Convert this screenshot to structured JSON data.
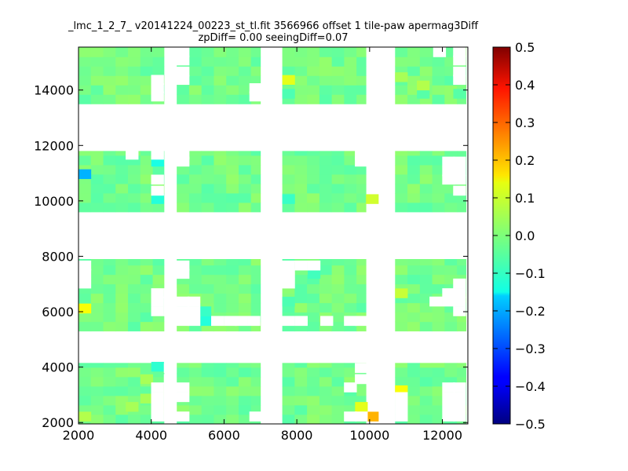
{
  "chart_data": {
    "type": "heatmap",
    "title": "_lmc_1_2_7_ v20141224_00223_st_tl.fit 3566966 offset 1 tile-paw apermag3Diff",
    "subtitle": "zpDiff= 0.00 seeingDiff=0.07",
    "xlabel": "",
    "ylabel": "",
    "xlim": [
      2000,
      12700
    ],
    "ylim": [
      1950,
      15550
    ],
    "xticks": [
      2000,
      4000,
      6000,
      8000,
      10000,
      12000
    ],
    "yticks": [
      2000,
      4000,
      6000,
      8000,
      10000,
      12000,
      14000
    ],
    "xtick_labels": [
      "2000",
      "4000",
      "6000",
      "8000",
      "10000",
      "12000"
    ],
    "ytick_labels": [
      "2000",
      "4000",
      "6000",
      "8000",
      "10000",
      "12000",
      "14000"
    ],
    "grid": false,
    "cell_size": 340,
    "colorbar": {
      "colormap": "jet",
      "vmin": -0.5,
      "vmax": 0.5,
      "ticks": [
        0.5,
        0.4,
        0.3,
        0.2,
        0.1,
        0.0,
        -0.1,
        -0.2,
        -0.3,
        -0.4,
        -0.5
      ],
      "tick_labels": [
        "0.5",
        "0.4",
        "0.3",
        "0.2",
        "0.1",
        "0.0",
        "−0.1",
        "−0.2",
        "−0.3",
        "−0.4",
        "−0.5"
      ]
    },
    "tile_blocks": {
      "x_ranges": [
        [
          2000,
          4350
        ],
        [
          4700,
          7000
        ],
        [
          7600,
          9900
        ],
        [
          10700,
          12650
        ]
      ],
      "y_ranges": [
        [
          1950,
          4150
        ],
        [
          5300,
          7900
        ],
        [
          9600,
          11800
        ],
        [
          13500,
          15550
        ]
      ],
      "base_value": -0.01
    },
    "cells": [
      {
        "x": 2000,
        "y": 10800,
        "v": -0.2
      },
      {
        "x": 4000,
        "y": 11250,
        "v": -0.1
      },
      {
        "x": 4000,
        "y": 9900,
        "v": -0.09
      },
      {
        "x": 2000,
        "y": 5950,
        "v": 0.12
      },
      {
        "x": 5300,
        "y": 5850,
        "v": -0.07
      },
      {
        "x": 5350,
        "y": 5500,
        "v": -0.09
      },
      {
        "x": 4000,
        "y": 3850,
        "v": -0.08
      },
      {
        "x": 9900,
        "y": 2050,
        "v": 0.2
      },
      {
        "x": 9600,
        "y": 2400,
        "v": 0.1
      },
      {
        "x": 10700,
        "y": 3000,
        "v": 0.12
      },
      {
        "x": 7600,
        "y": 14200,
        "v": 0.1
      },
      {
        "x": 7600,
        "y": 13700,
        "v": -0.05
      },
      {
        "x": 7600,
        "y": 9900,
        "v": -0.07
      },
      {
        "x": 9900,
        "y": 9900,
        "v": 0.08
      },
      {
        "x": 8300,
        "y": 7200,
        "v": -0.06
      },
      {
        "x": 7600,
        "y": 6200,
        "v": -0.05
      },
      {
        "x": 10700,
        "y": 6500,
        "v": 0.07
      },
      {
        "x": 12300,
        "y": 13700,
        "v": -0.04
      },
      {
        "x": 11300,
        "y": 13700,
        "v": -0.04
      },
      {
        "x": 10700,
        "y": 14300,
        "v": 0.04
      },
      {
        "x": 11300,
        "y": 14000,
        "v": 0.05
      },
      {
        "x": 2000,
        "y": 2050,
        "v": 0.05
      },
      {
        "x": 3300,
        "y": 2400,
        "v": 0.04
      },
      {
        "x": 3700,
        "y": 2700,
        "v": 0.04
      },
      {
        "x": 3700,
        "y": 3400,
        "v": 0.04
      }
    ],
    "holes": [
      {
        "x": 4000,
        "y": 14200
      },
      {
        "x": 4000,
        "y": 13900
      },
      {
        "x": 4000,
        "y": 13600
      },
      {
        "x": 4700,
        "y": 15200
      },
      {
        "x": 4700,
        "y": 14900
      },
      {
        "x": 4700,
        "y": 14500
      },
      {
        "x": 4700,
        "y": 14200
      },
      {
        "x": 6700,
        "y": 13600
      },
      {
        "x": 6700,
        "y": 13900
      },
      {
        "x": 10050,
        "y": 13600
      },
      {
        "x": 10050,
        "y": 13900
      },
      {
        "x": 12300,
        "y": 14200
      },
      {
        "x": 12300,
        "y": 14500
      },
      {
        "x": 12300,
        "y": 14900
      },
      {
        "x": 12300,
        "y": 15200
      },
      {
        "x": 11750,
        "y": 15200
      },
      {
        "x": 3300,
        "y": 11500
      },
      {
        "x": 4000,
        "y": 11500
      },
      {
        "x": 4000,
        "y": 10600
      },
      {
        "x": 4000,
        "y": 10200
      },
      {
        "x": 4700,
        "y": 11500
      },
      {
        "x": 4700,
        "y": 11250
      },
      {
        "x": 9600,
        "y": 11500
      },
      {
        "x": 9600,
        "y": 11250
      },
      {
        "x": 12000,
        "y": 11250
      },
      {
        "x": 12300,
        "y": 11250
      },
      {
        "x": 12000,
        "y": 10900
      },
      {
        "x": 12300,
        "y": 10900
      },
      {
        "x": 12000,
        "y": 10600
      },
      {
        "x": 12300,
        "y": 10600
      },
      {
        "x": 12300,
        "y": 10200
      },
      {
        "x": 2000,
        "y": 7500
      },
      {
        "x": 2000,
        "y": 7200
      },
      {
        "x": 2000,
        "y": 6850
      },
      {
        "x": 4000,
        "y": 6500
      },
      {
        "x": 4000,
        "y": 6200
      },
      {
        "x": 4000,
        "y": 5850
      },
      {
        "x": 4350,
        "y": 6500
      },
      {
        "x": 4350,
        "y": 6200
      },
      {
        "x": 4350,
        "y": 5850
      },
      {
        "x": 4700,
        "y": 7500
      },
      {
        "x": 4700,
        "y": 7200
      },
      {
        "x": 4700,
        "y": 6200
      },
      {
        "x": 5000,
        "y": 6200
      },
      {
        "x": 4700,
        "y": 5850
      },
      {
        "x": 5000,
        "y": 5850
      },
      {
        "x": 5650,
        "y": 5500
      },
      {
        "x": 6000,
        "y": 5500
      },
      {
        "x": 6300,
        "y": 5500
      },
      {
        "x": 6650,
        "y": 5500
      },
      {
        "x": 4700,
        "y": 5500
      },
      {
        "x": 5000,
        "y": 5500
      },
      {
        "x": 7600,
        "y": 7500
      },
      {
        "x": 7600,
        "y": 7200
      },
      {
        "x": 7600,
        "y": 6850
      },
      {
        "x": 7600,
        "y": 5500
      },
      {
        "x": 7950,
        "y": 5500
      },
      {
        "x": 8650,
        "y": 5500
      },
      {
        "x": 9300,
        "y": 5500
      },
      {
        "x": 9600,
        "y": 5500
      },
      {
        "x": 7950,
        "y": 7500
      },
      {
        "x": 8300,
        "y": 7500
      },
      {
        "x": 11650,
        "y": 6200
      },
      {
        "x": 12000,
        "y": 6200
      },
      {
        "x": 12000,
        "y": 6500
      },
      {
        "x": 12300,
        "y": 6500
      },
      {
        "x": 12300,
        "y": 6850
      },
      {
        "x": 12300,
        "y": 6200
      },
      {
        "x": 12300,
        "y": 5850
      },
      {
        "x": 4000,
        "y": 3100
      },
      {
        "x": 4000,
        "y": 2750
      },
      {
        "x": 4000,
        "y": 2400
      },
      {
        "x": 4000,
        "y": 2050
      },
      {
        "x": 4350,
        "y": 2750
      },
      {
        "x": 4350,
        "y": 2400
      },
      {
        "x": 4350,
        "y": 2050
      },
      {
        "x": 4350,
        "y": 3100
      },
      {
        "x": 4350,
        "y": 3400
      },
      {
        "x": 4350,
        "y": 3800
      },
      {
        "x": 4700,
        "y": 3100
      },
      {
        "x": 4700,
        "y": 2750
      },
      {
        "x": 4700,
        "y": 2050
      },
      {
        "x": 6700,
        "y": 2050
      },
      {
        "x": 9300,
        "y": 3100
      },
      {
        "x": 9600,
        "y": 3800
      },
      {
        "x": 9600,
        "y": 3400
      },
      {
        "x": 9600,
        "y": 2050
      },
      {
        "x": 9300,
        "y": 2050
      },
      {
        "x": 10700,
        "y": 2050
      },
      {
        "x": 10700,
        "y": 2400
      },
      {
        "x": 10700,
        "y": 2750
      },
      {
        "x": 12000,
        "y": 3100
      },
      {
        "x": 12000,
        "y": 2750
      },
      {
        "x": 12000,
        "y": 2400
      },
      {
        "x": 12000,
        "y": 2050
      },
      {
        "x": 12300,
        "y": 3100
      },
      {
        "x": 12300,
        "y": 2750
      },
      {
        "x": 12300,
        "y": 2400
      },
      {
        "x": 12300,
        "y": 2050
      }
    ]
  }
}
